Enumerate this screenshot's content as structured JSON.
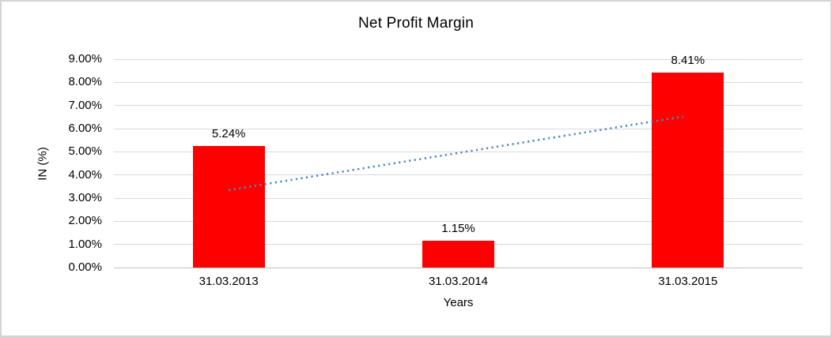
{
  "chart_data": {
    "type": "bar",
    "title": "Net Profit Margin",
    "xlabel": "Years",
    "ylabel": "IN (%)",
    "categories": [
      "31.03.2013",
      "31.03.2014",
      "31.03.2015"
    ],
    "values": [
      5.24,
      1.15,
      8.41
    ],
    "data_labels": [
      "5.24%",
      "1.15%",
      "8.41%"
    ],
    "ylim": [
      0,
      9
    ],
    "ytick_step": 1,
    "ytick_labels": [
      "0.00%",
      "1.00%",
      "2.00%",
      "3.00%",
      "4.00%",
      "5.00%",
      "6.00%",
      "7.00%",
      "8.00%",
      "9.00%"
    ],
    "grid": true,
    "legend_position": "none",
    "bar_color": "#ff0000",
    "trendline": {
      "type": "linear",
      "line_style": "dotted",
      "color": "#4e87c9",
      "start_value": 3.35,
      "end_value": 6.52
    },
    "colors": {
      "gridline": "#d9d9d9",
      "axis_line": "#bfbfbf",
      "text": "#000000",
      "frame_border": "#d4d4d4",
      "background": "#ffffff"
    }
  }
}
